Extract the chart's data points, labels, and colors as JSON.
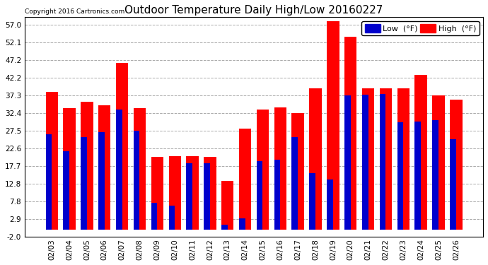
{
  "title": "Outdoor Temperature Daily High/Low 20160227",
  "copyright": "Copyright 2016 Cartronics.com",
  "legend_low": "Low  (°F)",
  "legend_high": "High  (°F)",
  "dates": [
    "02/03",
    "02/04",
    "02/05",
    "02/06",
    "02/07",
    "02/08",
    "02/09",
    "02/10",
    "02/11",
    "02/12",
    "02/13",
    "02/14",
    "02/15",
    "02/16",
    "02/17",
    "02/18",
    "02/19",
    "02/20",
    "02/21",
    "02/22",
    "02/23",
    "02/24",
    "02/25",
    "02/26"
  ],
  "high": [
    38.3,
    33.8,
    35.6,
    34.5,
    46.4,
    33.8,
    20.3,
    20.5,
    20.5,
    20.3,
    13.5,
    28.0,
    33.4,
    34.0,
    32.5,
    39.2,
    57.9,
    53.6,
    39.2,
    39.2,
    39.2,
    43.0,
    37.3,
    36.2
  ],
  "low": [
    26.6,
    21.9,
    25.7,
    27.1,
    33.3,
    27.5,
    7.5,
    6.8,
    18.5,
    18.5,
    1.5,
    3.2,
    19.0,
    19.5,
    25.7,
    15.8,
    14.0,
    37.4,
    37.6,
    37.8,
    29.9,
    30.0,
    30.4,
    25.2
  ],
  "ylim": [
    -2.0,
    59.0
  ],
  "yticks": [
    -2.0,
    2.9,
    7.8,
    12.8,
    17.7,
    22.6,
    27.5,
    32.4,
    37.3,
    42.2,
    47.2,
    52.1,
    57.0
  ],
  "high_color": "#ff0000",
  "low_color": "#0000cc",
  "bg_color": "#ffffff",
  "grid_color": "#aaaaaa",
  "title_fontsize": 11,
  "tick_fontsize": 7.5,
  "legend_fontsize": 8
}
